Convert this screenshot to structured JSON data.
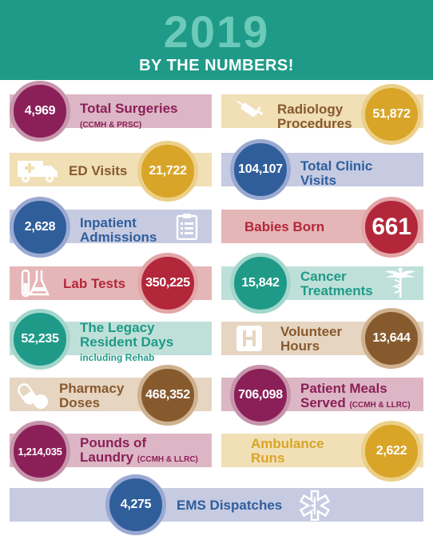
{
  "header": {
    "year": "2019",
    "subtitle": "BY THE NUMBERS!"
  },
  "stats": {
    "surgeries": {
      "value": "4,969",
      "label1": "Total Surgeries",
      "note": "(CCMH & PRSC)"
    },
    "radiology": {
      "value": "51,872",
      "label1": "Radiology",
      "label2": "Procedures"
    },
    "ed": {
      "value": "21,722",
      "label1": "ED Visits"
    },
    "clinic": {
      "value": "104,107",
      "label1": "Total Clinic",
      "label2": "Visits"
    },
    "inpatient": {
      "value": "2,628",
      "label1": "Inpatient",
      "label2": "Admissions"
    },
    "babies": {
      "value": "661",
      "label1": "Babies Born"
    },
    "lab": {
      "value": "350,225",
      "label1": "Lab Tests"
    },
    "cancer": {
      "value": "15,842",
      "label1": "Cancer",
      "label2": "Treatments"
    },
    "legacy": {
      "value": "52,235",
      "label1": "The Legacy",
      "label2": "Resident Days",
      "note": "including Rehab"
    },
    "volunteer": {
      "value": "13,644",
      "label1": "Volunteer",
      "label2": "Hours"
    },
    "pharmacy": {
      "value": "468,352",
      "label1": "Pharmacy",
      "label2": "Doses"
    },
    "meals": {
      "value": "706,098",
      "label1": "Patient Meals",
      "label2": "Served",
      "note": "(CCMH & LLRC)"
    },
    "laundry": {
      "value": "1,214,035",
      "label1": "Pounds of",
      "label2": "Laundry",
      "note": "(CCMH & LLRC)"
    },
    "ambulance": {
      "value": "2,622",
      "label1": "Ambulance",
      "label2": "Runs"
    },
    "ems": {
      "value": "4,275",
      "label1": "EMS Dispatches"
    }
  },
  "colors": {
    "teal": "#1f9a88",
    "magenta": "#8b1f58",
    "gold": "#d8a529",
    "blue": "#2f5e9b",
    "red": "#b3273a",
    "brown": "#875a2e"
  }
}
